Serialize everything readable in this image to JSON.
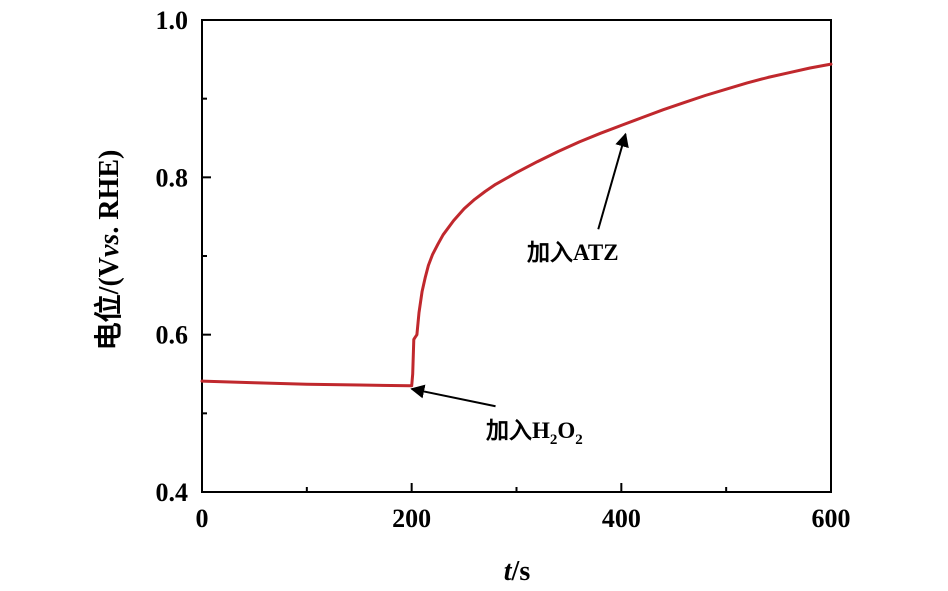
{
  "chart_data": {
    "type": "line",
    "title": "",
    "xlabel_parts": {
      "var": "t",
      "unit": "/s"
    },
    "ylabel_parts": {
      "main": "电位/(V",
      "italic": "vs",
      "rest": ". RHE)"
    },
    "xlim": [
      0,
      600
    ],
    "ylim": [
      0.4,
      1.0
    ],
    "x_ticks": [
      0,
      200,
      400,
      600
    ],
    "x_tick_labels": [
      "0",
      "200",
      "400",
      "600"
    ],
    "y_ticks": [
      0.4,
      0.6,
      0.8,
      1.0
    ],
    "y_tick_labels": [
      "0.4",
      "0.6",
      "0.8",
      "1.0"
    ],
    "grid": false,
    "line_color": "#c0282d",
    "series": [
      {
        "x": [
          0,
          50,
          100,
          150,
          199,
          200,
          201,
          202,
          203,
          204,
          205,
          207,
          210,
          213,
          216,
          220,
          225,
          230,
          240,
          250,
          260,
          270,
          280,
          300,
          320,
          340,
          360,
          380,
          400,
          420,
          440,
          460,
          480,
          500,
          520,
          540,
          560,
          580,
          600
        ],
        "y": [
          0.541,
          0.539,
          0.537,
          0.536,
          0.535,
          0.535,
          0.55,
          0.594,
          0.596,
          0.598,
          0.6,
          0.628,
          0.655,
          0.673,
          0.688,
          0.702,
          0.715,
          0.727,
          0.745,
          0.76,
          0.772,
          0.782,
          0.791,
          0.806,
          0.82,
          0.833,
          0.845,
          0.856,
          0.866,
          0.876,
          0.886,
          0.895,
          0.904,
          0.912,
          0.92,
          0.927,
          0.933,
          0.939,
          0.944
        ]
      }
    ],
    "annotations": [
      {
        "id": "h2o2",
        "text_main": "加入H",
        "sub1": "2",
        "mid": "O",
        "sub2": "2",
        "tip": [
          200,
          0.531
        ],
        "tail": [
          280,
          0.509
        ]
      },
      {
        "id": "atz",
        "text": "加入ATZ",
        "tip": [
          404,
          0.855
        ],
        "tail": [
          378,
          0.734
        ]
      }
    ]
  }
}
